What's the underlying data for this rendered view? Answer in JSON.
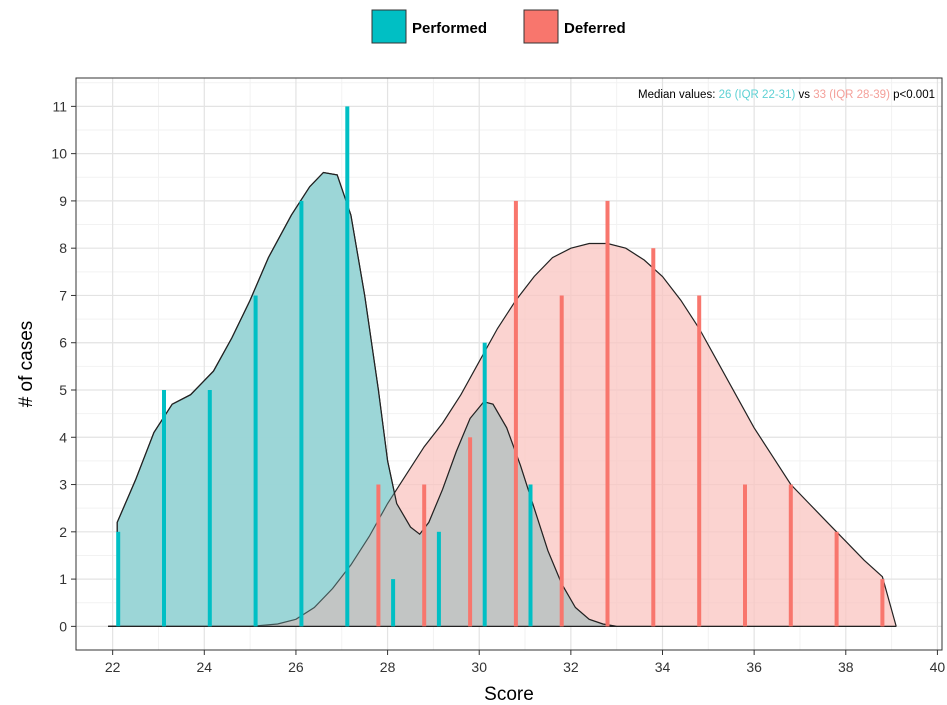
{
  "chart_data": {
    "type": "bar",
    "xlabel": "Score",
    "ylabel": "# of cases",
    "xlim": [
      21.2,
      40.1
    ],
    "ylim": [
      -0.5,
      11.6
    ],
    "xticks": [
      22,
      24,
      26,
      28,
      30,
      32,
      34,
      36,
      38,
      40
    ],
    "yticks": [
      0,
      1,
      2,
      3,
      4,
      5,
      6,
      7,
      8,
      9,
      10,
      11
    ],
    "grid": true,
    "legend_position": "top",
    "annotation": {
      "prefix": "Median values: ",
      "performed_text": "26 (IQR 22-31)",
      "middle": " vs ",
      "deferred_text": "33 (IQR 28-39)",
      "suffix": " p<0.001"
    },
    "series": [
      {
        "name": "Performed",
        "color": "#00BFC4",
        "fill": "#A8E6E8",
        "x": [
          22,
          23,
          24,
          25,
          26,
          27,
          28,
          29,
          30,
          31
        ],
        "values": [
          2,
          5,
          5,
          7,
          9,
          11,
          1,
          2,
          6,
          3
        ],
        "density": [
          [
            21.9,
            0
          ],
          [
            22.1,
            0
          ],
          [
            22.1,
            2.2
          ],
          [
            22.5,
            3.1
          ],
          [
            22.9,
            4.1
          ],
          [
            23.3,
            4.7
          ],
          [
            23.7,
            4.9
          ],
          [
            24.2,
            5.4
          ],
          [
            24.6,
            6.1
          ],
          [
            25.0,
            6.9
          ],
          [
            25.4,
            7.8
          ],
          [
            25.9,
            8.7
          ],
          [
            26.3,
            9.3
          ],
          [
            26.6,
            9.6
          ],
          [
            26.9,
            9.55
          ],
          [
            27.2,
            8.7
          ],
          [
            27.5,
            7.0
          ],
          [
            27.8,
            5.0
          ],
          [
            28.0,
            3.5
          ],
          [
            28.2,
            2.6
          ],
          [
            28.5,
            2.1
          ],
          [
            28.7,
            1.95
          ],
          [
            28.9,
            2.2
          ],
          [
            29.2,
            2.9
          ],
          [
            29.5,
            3.7
          ],
          [
            29.8,
            4.4
          ],
          [
            30.1,
            4.75
          ],
          [
            30.3,
            4.7
          ],
          [
            30.6,
            4.2
          ],
          [
            30.9,
            3.4
          ],
          [
            31.2,
            2.5
          ],
          [
            31.5,
            1.6
          ],
          [
            31.8,
            0.9
          ],
          [
            32.1,
            0.4
          ],
          [
            32.4,
            0.15
          ],
          [
            32.7,
            0.05
          ],
          [
            33.0,
            0
          ],
          [
            39.1,
            0
          ]
        ]
      },
      {
        "name": "Deferred",
        "color": "#F8766D",
        "fill": "#F9C4C0",
        "x": [
          28,
          29,
          30,
          31,
          32,
          33,
          34,
          35,
          36,
          37,
          38,
          39
        ],
        "values": [
          3,
          3,
          4,
          9,
          7,
          9,
          8,
          7,
          3,
          3,
          2,
          1
        ],
        "density": [
          [
            21.9,
            0
          ],
          [
            25.0,
            0
          ],
          [
            25.6,
            0.05
          ],
          [
            26.0,
            0.15
          ],
          [
            26.4,
            0.4
          ],
          [
            26.8,
            0.8
          ],
          [
            27.2,
            1.3
          ],
          [
            27.6,
            1.9
          ],
          [
            28.0,
            2.6
          ],
          [
            28.4,
            3.2
          ],
          [
            28.8,
            3.8
          ],
          [
            29.2,
            4.3
          ],
          [
            29.6,
            4.9
          ],
          [
            30.0,
            5.6
          ],
          [
            30.4,
            6.3
          ],
          [
            30.8,
            6.9
          ],
          [
            31.2,
            7.4
          ],
          [
            31.6,
            7.8
          ],
          [
            32.0,
            8.0
          ],
          [
            32.4,
            8.1
          ],
          [
            32.8,
            8.1
          ],
          [
            33.2,
            8.0
          ],
          [
            33.6,
            7.75
          ],
          [
            34.0,
            7.4
          ],
          [
            34.4,
            6.9
          ],
          [
            34.8,
            6.3
          ],
          [
            35.2,
            5.6
          ],
          [
            35.6,
            4.9
          ],
          [
            36.0,
            4.2
          ],
          [
            36.4,
            3.6
          ],
          [
            36.8,
            3.0
          ],
          [
            37.2,
            2.6
          ],
          [
            37.6,
            2.2
          ],
          [
            38.0,
            1.8
          ],
          [
            38.4,
            1.4
          ],
          [
            38.8,
            1.05
          ],
          [
            39.1,
            0
          ]
        ]
      }
    ]
  }
}
